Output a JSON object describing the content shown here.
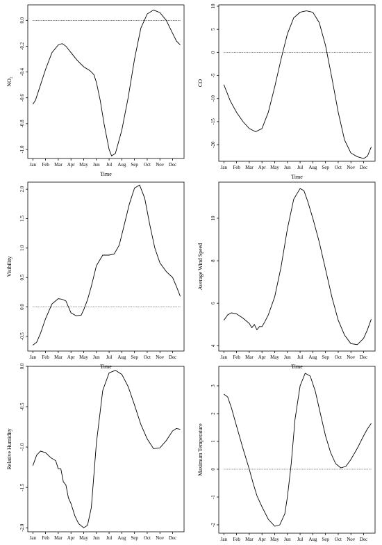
{
  "chart_data": [
    {
      "type": "line",
      "ylabel": "NO₂",
      "xlabel": "Time",
      "x_ticks": [
        "Jan",
        "Feb",
        "Mar",
        "Apr",
        "May",
        "Jun",
        "Jul",
        "Aug",
        "Sep",
        "Oct",
        "Nov",
        "Dec"
      ],
      "y_ticks": [
        "0.0",
        "-0.2",
        "-0.4",
        "-0.6",
        "-0.8",
        "-1.0"
      ],
      "y_tick_values": [
        0.0,
        -0.2,
        -0.4,
        -0.6,
        -0.8,
        -1.0
      ],
      "ylim": [
        -1.07,
        0.12
      ],
      "xlim": [
        0.6,
        12.9
      ],
      "reference_line": 0,
      "series": [
        {
          "x": [
            1,
            1.2,
            1.5,
            2,
            2.5,
            3,
            3.3,
            3.6,
            4,
            4.5,
            5,
            5.5,
            5.8,
            6,
            6.3,
            6.6,
            7,
            7.2,
            7.5,
            8,
            8.5,
            9,
            9.5,
            10,
            10.5,
            11,
            11.5,
            12,
            12.3,
            12.6
          ],
          "y": [
            -0.65,
            -0.62,
            -0.53,
            -0.38,
            -0.25,
            -0.19,
            -0.18,
            -0.2,
            -0.25,
            -0.31,
            -0.36,
            -0.39,
            -0.42,
            -0.48,
            -0.62,
            -0.8,
            -1.0,
            -1.05,
            -1.03,
            -0.85,
            -0.6,
            -0.3,
            -0.06,
            0.05,
            0.08,
            0.06,
            0.0,
            -0.1,
            -0.16,
            -0.19
          ]
        }
      ]
    },
    {
      "type": "line",
      "ylabel": "CO",
      "xlabel": "Time",
      "x_ticks": [
        "Jan",
        "Feb",
        "Mar",
        "Apr",
        "May",
        "Jun",
        "Jul",
        "Aug",
        "Sep",
        "Oct",
        "Nov",
        "Dec"
      ],
      "y_ticks": [
        "10",
        "5",
        "0",
        "-5",
        "-10",
        "-15",
        "-20"
      ],
      "y_tick_values": [
        10,
        5,
        0,
        -5,
        -10,
        -15,
        -20
      ],
      "ylim": [
        -23.6,
        10.3
      ],
      "xlim": [
        0.6,
        12.9
      ],
      "reference_line": 0,
      "series": [
        {
          "x": [
            1,
            1.5,
            2,
            2.5,
            3,
            3.5,
            4,
            4.5,
            5,
            5.5,
            6,
            6.5,
            7,
            7.5,
            8,
            8.5,
            9,
            9.5,
            10,
            10.5,
            11,
            11.5,
            12,
            12.3,
            12.6
          ],
          "y": [
            -7,
            -10.5,
            -13,
            -15,
            -16.5,
            -17.2,
            -16.5,
            -13,
            -7.5,
            -1.5,
            4,
            7.5,
            8.7,
            9,
            8.7,
            6.5,
            1.5,
            -5.5,
            -13,
            -19,
            -21.8,
            -22.6,
            -23,
            -22.5,
            -20.5
          ]
        }
      ]
    },
    {
      "type": "line",
      "ylabel": "Visibility",
      "xlabel": "Time",
      "x_ticks": [
        "Jan",
        "Feb",
        "Mar",
        "Apr",
        "May",
        "Jun",
        "Jul",
        "Aug",
        "Sep",
        "Oct",
        "Nov",
        "Dec"
      ],
      "y_ticks": [
        "2.0",
        "1.5",
        "1.0",
        "0.5",
        "0.0",
        "-0.5"
      ],
      "y_tick_values": [
        2.0,
        1.5,
        1.0,
        0.5,
        0.0,
        -0.5
      ],
      "ylim": [
        -0.75,
        2.12
      ],
      "xlim": [
        0.6,
        12.9
      ],
      "reference_line": 0,
      "series": [
        {
          "x": [
            1,
            1.3,
            1.6,
            2,
            2.5,
            3,
            3.3,
            3.6,
            4,
            4.4,
            4.8,
            5,
            5.3,
            5.6,
            6,
            6.5,
            7,
            7.4,
            7.8,
            8.2,
            8.6,
            9,
            9.4,
            9.8,
            10.2,
            10.6,
            11,
            11.5,
            12,
            12.3,
            12.6
          ],
          "y": [
            -0.65,
            -0.6,
            -0.45,
            -0.2,
            0.05,
            0.14,
            0.13,
            0.1,
            -0.1,
            -0.15,
            -0.14,
            -0.05,
            0.12,
            0.35,
            0.7,
            0.88,
            0.88,
            0.9,
            1.05,
            1.4,
            1.75,
            2.02,
            2.07,
            1.85,
            1.4,
            1.0,
            0.75,
            0.6,
            0.5,
            0.35,
            0.18
          ]
        }
      ]
    },
    {
      "type": "line",
      "ylabel": "Average Wind Speed",
      "xlabel": "Time",
      "x_ticks": [
        "Jan",
        "Feb",
        "Mar",
        "Apr",
        "May",
        "Jun",
        "Jul",
        "Aug",
        "Sep",
        "Oct",
        "Nov",
        "Dec"
      ],
      "y_ticks": [
        "10",
        "8",
        "6",
        "4"
      ],
      "y_tick_values": [
        10,
        8,
        6,
        4
      ],
      "ylim": [
        3.75,
        11.7
      ],
      "xlim": [
        0.6,
        12.9
      ],
      "reference_line": null,
      "series": [
        {
          "x": [
            1,
            1.3,
            1.6,
            2,
            2.5,
            3,
            3.2,
            3.4,
            3.6,
            3.8,
            4,
            4.2,
            4.5,
            5,
            5.5,
            6,
            6.5,
            7,
            7.3,
            7.6,
            8,
            8.5,
            9,
            9.5,
            10,
            10.5,
            11,
            11.5,
            12,
            12.3,
            12.6
          ],
          "y": [
            5.2,
            5.45,
            5.55,
            5.5,
            5.3,
            5.05,
            4.85,
            5.0,
            4.75,
            4.9,
            4.9,
            5.1,
            5.45,
            6.3,
            7.7,
            9.5,
            10.9,
            11.4,
            11.3,
            10.8,
            10.0,
            8.9,
            7.6,
            6.3,
            5.2,
            4.5,
            4.1,
            4.05,
            4.35,
            4.75,
            5.25
          ]
        }
      ]
    },
    {
      "type": "line",
      "ylabel": "Relative Humidity",
      "xlabel": "Time",
      "x_ticks": [
        "Jan",
        "Feb",
        "Mar",
        "Apr",
        "May",
        "Jun",
        "Jul",
        "Aug",
        "Sep",
        "Oct",
        "Nov",
        "Dec"
      ],
      "y_ticks": [
        "0.0",
        "-0.5",
        "-1.0",
        "-1.5",
        "-2.0"
      ],
      "y_tick_values": [
        0.0,
        -0.5,
        -1.0,
        -1.5,
        -2.0
      ],
      "ylim": [
        -2.05,
        0.0
      ],
      "xlim": [
        0.6,
        12.9
      ],
      "reference_line": 0,
      "series": [
        {
          "x": [
            1,
            1.3,
            1.6,
            2,
            2.4,
            2.8,
            3,
            3.2,
            3.4,
            3.6,
            3.8,
            4,
            4.3,
            4.6,
            5,
            5.3,
            5.6,
            6,
            6.5,
            7,
            7.5,
            8,
            8.5,
            9,
            9.5,
            10,
            10.5,
            11,
            11.5,
            12,
            12.3,
            12.6
          ],
          "y": [
            -1.23,
            -1.1,
            -1.05,
            -1.07,
            -1.13,
            -1.17,
            -1.27,
            -1.27,
            -1.43,
            -1.47,
            -1.63,
            -1.7,
            -1.85,
            -1.95,
            -2.0,
            -1.97,
            -1.75,
            -0.95,
            -0.3,
            -0.08,
            -0.05,
            -0.1,
            -0.25,
            -0.48,
            -0.72,
            -0.9,
            -1.02,
            -1.01,
            -0.92,
            -0.8,
            -0.77,
            -0.78
          ]
        }
      ]
    },
    {
      "type": "line",
      "ylabel": "Maximum Temperature",
      "xlabel": "Time",
      "x_ticks": [
        "Jan",
        "Feb",
        "Mar",
        "Apr",
        "May",
        "Jun",
        "Jul",
        "Aug",
        "Sep",
        "Oct",
        "Nov",
        "Dec"
      ],
      "y_ticks": [
        "3",
        "2",
        "1",
        "0",
        "-1",
        "-2"
      ],
      "y_tick_values": [
        3,
        2,
        1,
        0,
        -1,
        -2
      ],
      "ylim": [
        -2.3,
        3.7
      ],
      "xlim": [
        0.6,
        12.9
      ],
      "reference_line": 0,
      "series": [
        {
          "x": [
            1,
            1.3,
            1.6,
            2,
            2.5,
            3,
            3.3,
            3.6,
            4,
            4.5,
            5,
            5.4,
            5.8,
            6,
            6.3,
            6.6,
            7,
            7.4,
            7.8,
            8.2,
            8.6,
            9,
            9.4,
            9.8,
            10.2,
            10.6,
            11,
            11.5,
            12,
            12.3,
            12.6
          ],
          "y": [
            2.7,
            2.6,
            2.2,
            1.55,
            0.75,
            0.0,
            -0.5,
            -0.95,
            -1.35,
            -1.8,
            -2.05,
            -2.0,
            -1.6,
            -1.0,
            0.2,
            1.8,
            3.0,
            3.45,
            3.35,
            2.8,
            2.0,
            1.2,
            0.6,
            0.2,
            0.05,
            0.1,
            0.35,
            0.75,
            1.2,
            1.45,
            1.65
          ]
        }
      ]
    }
  ]
}
